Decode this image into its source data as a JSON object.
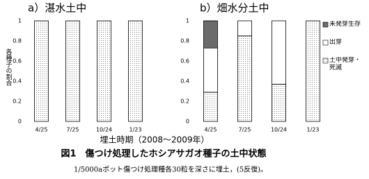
{
  "figure": {
    "xlabel": "埋土時期（2008～2009年）",
    "caption": "図1　傷つけ処理したホシアサガオ種子の土中状態",
    "note": "1/5000aポット傷つけ処理種各30粒を深さに埋土，(5反復)。"
  },
  "chart_data": [
    {
      "type": "bar",
      "title": "a）湛水土中",
      "ylabel": "各種子の割合",
      "categories": [
        "4/25",
        "7/25",
        "10/24",
        "1/23"
      ],
      "values": [
        1,
        1,
        1,
        1
      ],
      "color": "#ffffff",
      "pattern": "dots",
      "ylim": [
        0,
        1
      ],
      "yticks": [
        0,
        0.2,
        0.4,
        0.6,
        0.8,
        1
      ]
    },
    {
      "type": "bar",
      "title": "b）畑水分土中",
      "stacked": true,
      "legend": "right",
      "categories": [
        "4/25",
        "7/25",
        "10/24",
        "1/23"
      ],
      "series": [
        {
          "name": "土中発芽・死滅",
          "color": "#ffffff",
          "pattern": "dots",
          "values": [
            0.29,
            0.85,
            0.37,
            1
          ]
        },
        {
          "name": "出芽",
          "color": "#ffffff",
          "pattern": "none",
          "values": [
            0.44,
            0.15,
            0.63,
            0
          ]
        },
        {
          "name": "未発芽生存",
          "color": "#888888",
          "pattern": "dots",
          "values": [
            0.27,
            0,
            0,
            0
          ]
        }
      ],
      "ylim": [
        0,
        1
      ],
      "yticks": [
        0,
        0.2,
        0.4,
        0.6,
        0.8,
        1
      ]
    }
  ]
}
